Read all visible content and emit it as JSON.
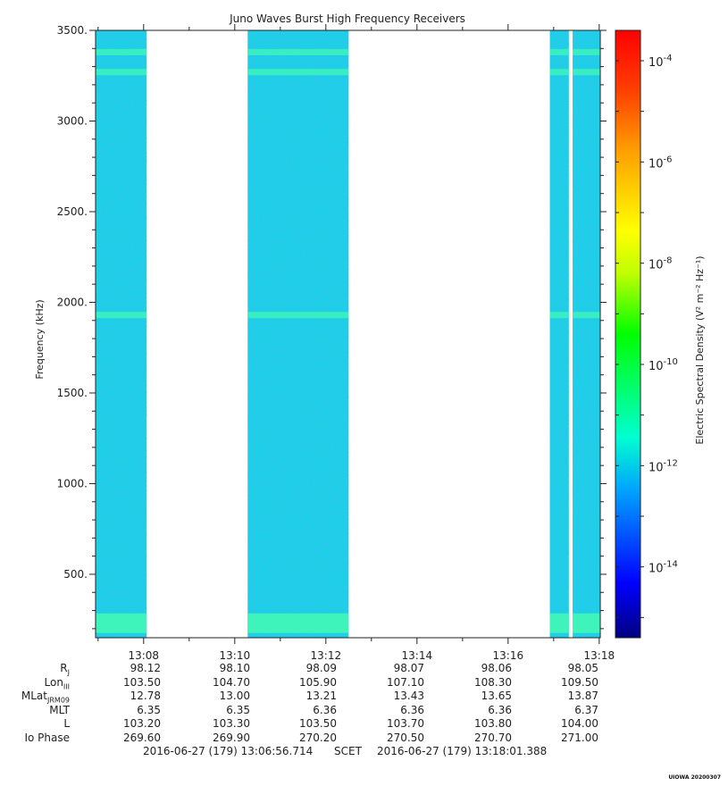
{
  "title": "Juno Waves Burst High Frequency Receivers",
  "ylabel": "Frequency (kHz)",
  "colorbar_label": "Electric Spectral Density (V² m⁻² Hz⁻¹)",
  "chart_data": {
    "type": "heatmap",
    "title": "Juno Waves Burst High Frequency Receivers",
    "ylabel": "Frequency (kHz)",
    "xlabel": "",
    "ylim": [
      150,
      3500
    ],
    "yticks": [
      "500.",
      "1000.",
      "1500.",
      "2000.",
      "2500.",
      "3000.",
      "3500."
    ],
    "xticks": [
      "13:08",
      "13:10",
      "13:12",
      "13:14",
      "13:16",
      "13:18"
    ],
    "time_range": [
      "13:06:56.714",
      "13:18:01.388"
    ],
    "data_blocks": [
      {
        "start": "13:06:56.714",
        "end": "13:08:04"
      },
      {
        "start": "13:10:17",
        "end": "13:12:30"
      },
      {
        "start": "13:16:55",
        "end": "13:17:20"
      },
      {
        "start": "13:17:25",
        "end": "13:18:01.388"
      }
    ],
    "background_level": "1e-12",
    "emission_bands_khz": [
      230,
      1930,
      3380,
      3270
    ],
    "colorbar": {
      "scale": "log",
      "ticks": [
        "10^-4",
        "10^-6",
        "10^-8",
        "10^-10",
        "10^-12",
        "10^-14"
      ],
      "label": "Electric Spectral Density (V^2 m^-2 Hz^-1)",
      "colors": [
        "#000080",
        "#0000ff",
        "#00a0ff",
        "#00ffd0",
        "#00ff00",
        "#c0ff00",
        "#ffff00",
        "#ffa000",
        "#ff4000",
        "#ff0000"
      ]
    }
  },
  "ephemeris": {
    "rows": [
      {
        "label": "R",
        "sub": "J",
        "values": [
          "98.12",
          "98.10",
          "98.09",
          "98.07",
          "98.06",
          "98.05"
        ]
      },
      {
        "label": "Lon",
        "sub": "III",
        "values": [
          "103.50",
          "104.70",
          "105.90",
          "107.10",
          "108.30",
          "109.50"
        ]
      },
      {
        "label": "MLat",
        "sub": "JRM09",
        "values": [
          "12.78",
          "13.00",
          "13.21",
          "13.43",
          "13.65",
          "13.87"
        ]
      },
      {
        "label": "MLT",
        "sub": "",
        "values": [
          "6.35",
          "6.35",
          "6.36",
          "6.36",
          "6.36",
          "6.37"
        ]
      },
      {
        "label": "L",
        "sub": "",
        "values": [
          "103.20",
          "103.30",
          "103.50",
          "103.70",
          "103.80",
          "104.00"
        ]
      },
      {
        "label": "Io Phase",
        "sub": "",
        "values": [
          "269.60",
          "269.90",
          "270.20",
          "270.50",
          "270.70",
          "271.00"
        ]
      }
    ]
  },
  "scet": {
    "start": "2016-06-27 (179) 13:06:56.714",
    "middle": "SCET",
    "end": "2016-06-27 (179) 13:18:01.388"
  },
  "credit": "UIOWA 20200307"
}
